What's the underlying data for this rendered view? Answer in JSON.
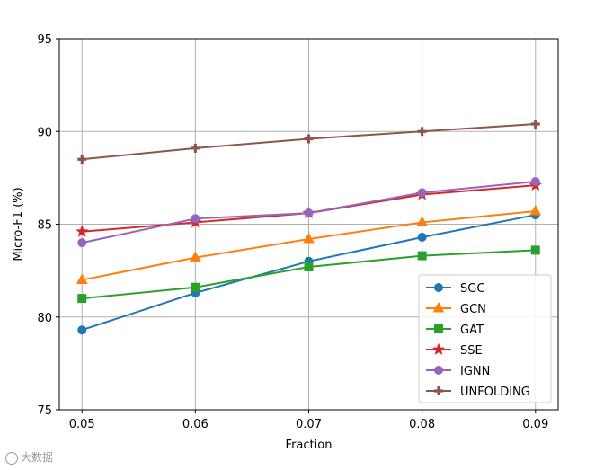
{
  "chart_data": {
    "type": "line",
    "title": "",
    "xlabel": "Fraction",
    "ylabel": "Micro-F1 (%)",
    "x": [
      0.05,
      0.06,
      0.07,
      0.08,
      0.09
    ],
    "x_tick_labels": [
      "0.05",
      "0.06",
      "0.07",
      "0.08",
      "0.09"
    ],
    "xlim": [
      0.048,
      0.092
    ],
    "ylim": [
      75,
      95
    ],
    "y_ticks": [
      75,
      80,
      85,
      90,
      95
    ],
    "y_tick_labels": [
      "75",
      "80",
      "85",
      "90",
      "95"
    ],
    "grid": true,
    "legend_position": "lower-right",
    "series": [
      {
        "name": "SGC",
        "color": "#1f77b4",
        "marker": "circle",
        "values": [
          79.3,
          81.3,
          83.0,
          84.3,
          85.5
        ]
      },
      {
        "name": "GCN",
        "color": "#ff7f0e",
        "marker": "triangle",
        "values": [
          82.0,
          83.2,
          84.2,
          85.1,
          85.7
        ]
      },
      {
        "name": "GAT",
        "color": "#2ca02c",
        "marker": "square",
        "values": [
          81.0,
          81.6,
          82.7,
          83.3,
          83.6
        ]
      },
      {
        "name": "SSE",
        "color": "#d62728",
        "marker": "star",
        "values": [
          84.6,
          85.1,
          85.6,
          86.6,
          87.1
        ]
      },
      {
        "name": "IGNN",
        "color": "#9467bd",
        "marker": "circle",
        "values": [
          84.0,
          85.3,
          85.6,
          86.7,
          87.3
        ]
      },
      {
        "name": "UNFOLDING",
        "color": "#8c564b",
        "marker": "plus",
        "values": [
          88.5,
          89.1,
          89.6,
          90.0,
          90.4
        ]
      }
    ]
  },
  "watermark": {
    "text": "大数据"
  }
}
